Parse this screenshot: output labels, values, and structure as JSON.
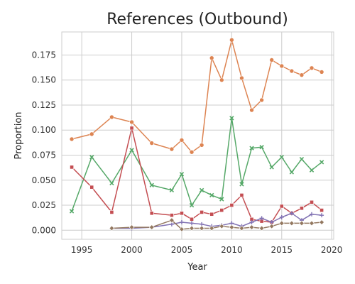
{
  "chart_data": {
    "type": "line",
    "title": "References (Outbound)",
    "xlabel": "Year",
    "ylabel": "Proportion",
    "xlim": [
      1993,
      2020.2
    ],
    "ylim": [
      -0.009,
      0.198
    ],
    "xticks": [
      1995,
      2000,
      2005,
      2010,
      2015,
      2020
    ],
    "yticks": [
      0.0,
      0.025,
      0.05,
      0.075,
      0.1,
      0.125,
      0.15,
      0.175
    ],
    "ytick_labels": [
      "0.000",
      "0.025",
      "0.050",
      "0.075",
      "0.100",
      "0.125",
      "0.150",
      "0.175"
    ],
    "grid": true,
    "legend": "none",
    "series": [
      {
        "color": "#dd8452",
        "marker": "circle",
        "x": [
          1994,
          1996,
          1998,
          2000,
          2002,
          2004,
          2005,
          2006,
          2007,
          2008,
          2009,
          2010,
          2011,
          2012,
          2013,
          2014,
          2015,
          2016,
          2017,
          2018,
          2019
        ],
        "y": [
          0.091,
          0.096,
          0.113,
          0.108,
          0.087,
          0.081,
          0.09,
          0.078,
          0.085,
          0.172,
          0.15,
          0.19,
          0.152,
          0.12,
          0.13,
          0.17,
          0.164,
          0.159,
          0.155,
          0.162,
          0.158
        ]
      },
      {
        "color": "#55a868",
        "marker": "x",
        "x": [
          1994,
          1996,
          1998,
          2000,
          2002,
          2004,
          2005,
          2006,
          2007,
          2008,
          2009,
          2010,
          2011,
          2012,
          2013,
          2014,
          2015,
          2016,
          2017,
          2018,
          2019
        ],
        "y": [
          0.019,
          0.073,
          0.047,
          0.08,
          0.045,
          0.04,
          0.056,
          0.025,
          0.04,
          0.035,
          0.031,
          0.112,
          0.046,
          0.082,
          0.083,
          0.063,
          0.073,
          0.058,
          0.071,
          0.06,
          0.068
        ]
      },
      {
        "color": "#c44e52",
        "marker": "square",
        "x": [
          1994,
          1996,
          1998,
          2000,
          2002,
          2004,
          2005,
          2006,
          2007,
          2008,
          2009,
          2010,
          2011,
          2012,
          2013,
          2014,
          2015,
          2016,
          2017,
          2018,
          2019
        ],
        "y": [
          0.063,
          0.043,
          0.018,
          0.102,
          0.017,
          0.015,
          0.017,
          0.011,
          0.018,
          0.016,
          0.02,
          0.025,
          0.035,
          0.011,
          0.009,
          0.008,
          0.024,
          0.017,
          0.022,
          0.028,
          0.02
        ]
      },
      {
        "color": "#8172b3",
        "marker": "plus",
        "x": [
          1998,
          2000,
          2002,
          2004,
          2005,
          2006,
          2007,
          2008,
          2009,
          2010,
          2011,
          2012,
          2013,
          2014,
          2015,
          2016,
          2017,
          2018,
          2019
        ],
        "y": [
          0.002,
          0.002,
          0.003,
          0.006,
          0.008,
          0.007,
          0.006,
          0.004,
          0.005,
          0.007,
          0.004,
          0.008,
          0.012,
          0.008,
          0.013,
          0.017,
          0.01,
          0.016,
          0.015
        ]
      },
      {
        "color": "#937860",
        "marker": "diamond",
        "x": [
          1998,
          2000,
          2002,
          2004,
          2005,
          2006,
          2007,
          2008,
          2009,
          2010,
          2011,
          2012,
          2013,
          2014,
          2015,
          2016,
          2017,
          2018,
          2019
        ],
        "y": [
          0.002,
          0.003,
          0.003,
          0.01,
          0.001,
          0.002,
          0.002,
          0.002,
          0.004,
          0.003,
          0.002,
          0.003,
          0.002,
          0.004,
          0.007,
          0.007,
          0.007,
          0.007,
          0.008
        ]
      }
    ]
  }
}
